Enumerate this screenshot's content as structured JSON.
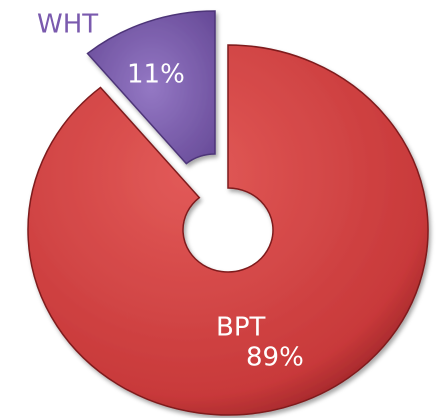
{
  "chart_data": {
    "type": "donut",
    "categories": [
      "BPT",
      "WHT"
    ],
    "values": [
      89,
      11
    ],
    "value_labels": [
      "89%",
      "11%"
    ],
    "colors": [
      "#c8393a",
      "#7a5aae"
    ]
  }
}
